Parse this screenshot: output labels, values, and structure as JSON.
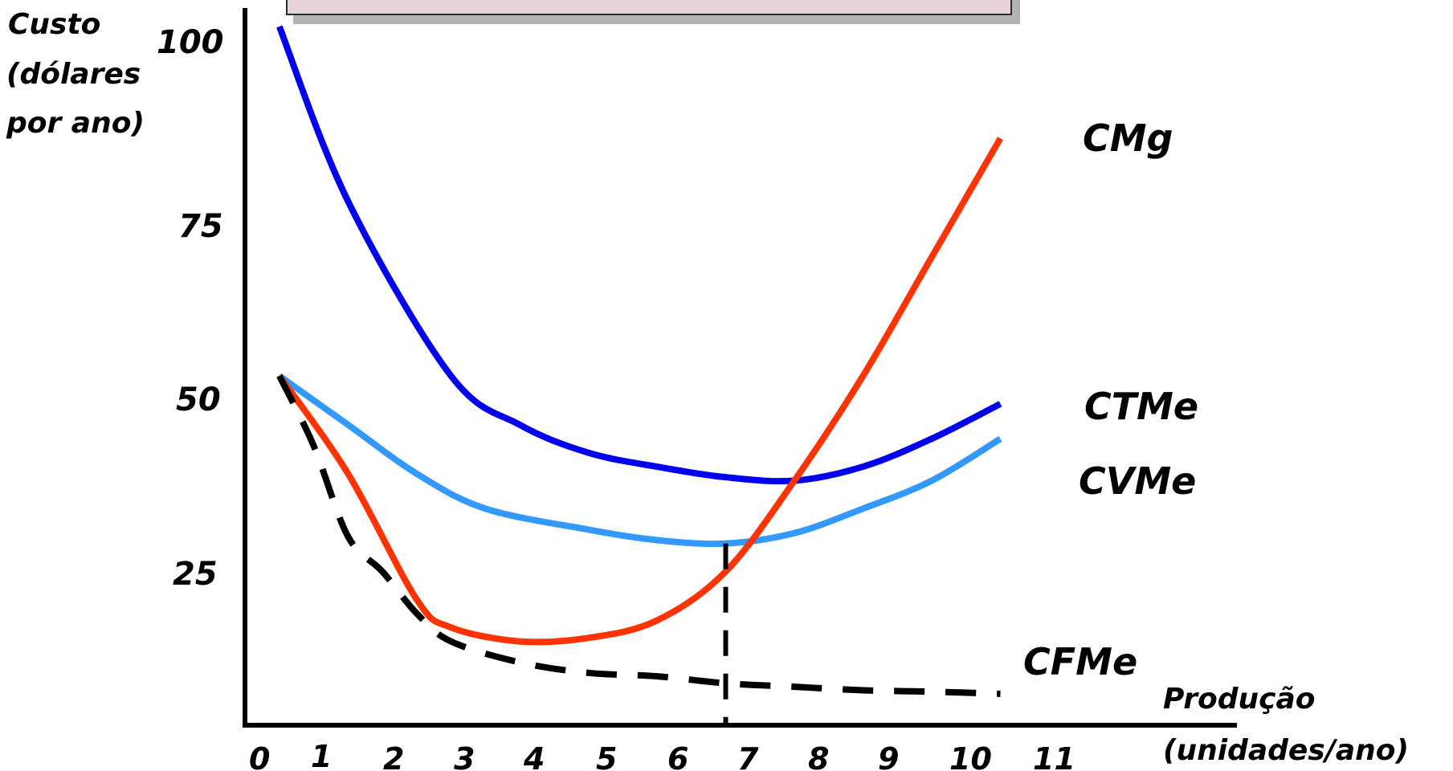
{
  "chart_data": {
    "type": "line",
    "ylabel": [
      "Custo",
      "(dólares",
      "por ano)"
    ],
    "xlabel": [
      "Produção",
      "(unidades/ano)"
    ],
    "x_ticks": [
      "0",
      "1",
      "2",
      "3",
      "4",
      "5",
      "6",
      "7",
      "8",
      "9",
      "10",
      "11"
    ],
    "y_ticks": [
      "25",
      "50",
      "75",
      "100"
    ],
    "xlim": [
      0,
      11
    ],
    "ylim": [
      0,
      100
    ],
    "grid": false,
    "series": [
      {
        "name": "CTMe",
        "color": "#0000ee",
        "style": "solid",
        "points": [
          [
            0.5,
            100
          ],
          [
            1.5,
            75
          ],
          [
            3,
            50
          ],
          [
            4,
            43
          ],
          [
            5,
            39
          ],
          [
            6,
            37
          ],
          [
            7,
            35.5
          ],
          [
            8,
            35
          ],
          [
            9,
            37
          ],
          [
            10,
            41
          ],
          [
            11,
            46
          ]
        ]
      },
      {
        "name": "CVMe",
        "color": "#3399ff",
        "style": "solid",
        "points": [
          [
            0.5,
            50
          ],
          [
            1.5,
            43
          ],
          [
            2.5,
            36
          ],
          [
            3.5,
            31
          ],
          [
            5,
            28
          ],
          [
            6,
            26.5
          ],
          [
            7,
            26
          ],
          [
            8,
            27.5
          ],
          [
            9,
            31
          ],
          [
            10,
            35
          ],
          [
            11,
            41
          ]
        ]
      },
      {
        "name": "CMg",
        "color": "#ff3300",
        "style": "solid",
        "points": [
          [
            0.5,
            50
          ],
          [
            1.5,
            36
          ],
          [
            2.5,
            18
          ],
          [
            3,
            14
          ],
          [
            4,
            12
          ],
          [
            5,
            12.5
          ],
          [
            6,
            15
          ],
          [
            7,
            22
          ],
          [
            8,
            35
          ],
          [
            9,
            50
          ],
          [
            10,
            67
          ],
          [
            11,
            84
          ]
        ]
      },
      {
        "name": "CFMe",
        "color": "#000000",
        "style": "dashed",
        "points": [
          [
            0.5,
            50
          ],
          [
            1,
            40
          ],
          [
            1.5,
            27
          ],
          [
            2,
            22
          ],
          [
            2.5,
            16
          ],
          [
            3,
            12
          ],
          [
            4,
            9
          ],
          [
            5,
            7.5
          ],
          [
            6,
            7
          ],
          [
            7,
            6
          ],
          [
            8,
            5.5
          ],
          [
            9,
            5
          ],
          [
            10,
            4.8
          ],
          [
            11,
            4.5
          ]
        ]
      }
    ],
    "reference_lines": [
      {
        "x": 7,
        "from_y": 0,
        "to_y": 26,
        "style": "dashed",
        "color": "#000000"
      }
    ]
  }
}
